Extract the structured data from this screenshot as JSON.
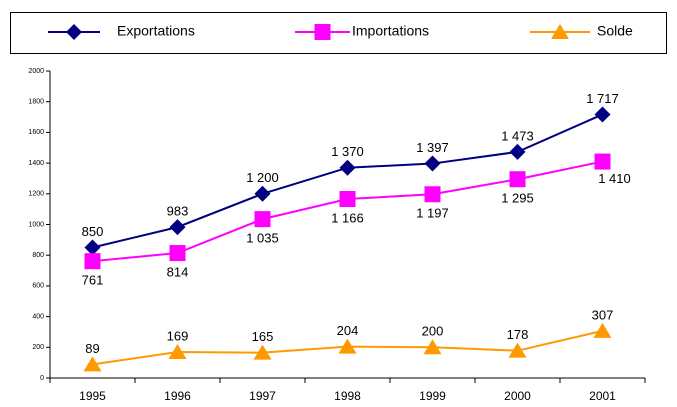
{
  "chart_data": {
    "type": "line",
    "categories": [
      "1995",
      "1996",
      "1997",
      "1998",
      "1999",
      "2000",
      "2001"
    ],
    "series": [
      {
        "name": "Exportations",
        "color": "#000080",
        "marker": "diamond",
        "values": [
          850,
          983,
          1200,
          1370,
          1397,
          1473,
          1717
        ],
        "value_labels": [
          "850",
          "983",
          "1 200",
          "1 370",
          "1 397",
          "1 473",
          "1 717"
        ]
      },
      {
        "name": "Importations",
        "color": "#ff00ff",
        "marker": "square",
        "values": [
          761,
          814,
          1035,
          1166,
          1197,
          1295,
          1410
        ],
        "value_labels": [
          "761",
          "814",
          "1 035",
          "1 166",
          "1 197",
          "1 295",
          "1 410"
        ]
      },
      {
        "name": "Solde",
        "color": "#ff9900",
        "marker": "triangle",
        "values": [
          89,
          169,
          165,
          204,
          200,
          178,
          307
        ]
      }
    ],
    "ylim": [
      0,
      2000
    ],
    "yticks": [
      0,
      200,
      400,
      600,
      800,
      1000,
      1200,
      1400,
      1600,
      1800,
      2000
    ],
    "grid": false,
    "legend": "top"
  }
}
